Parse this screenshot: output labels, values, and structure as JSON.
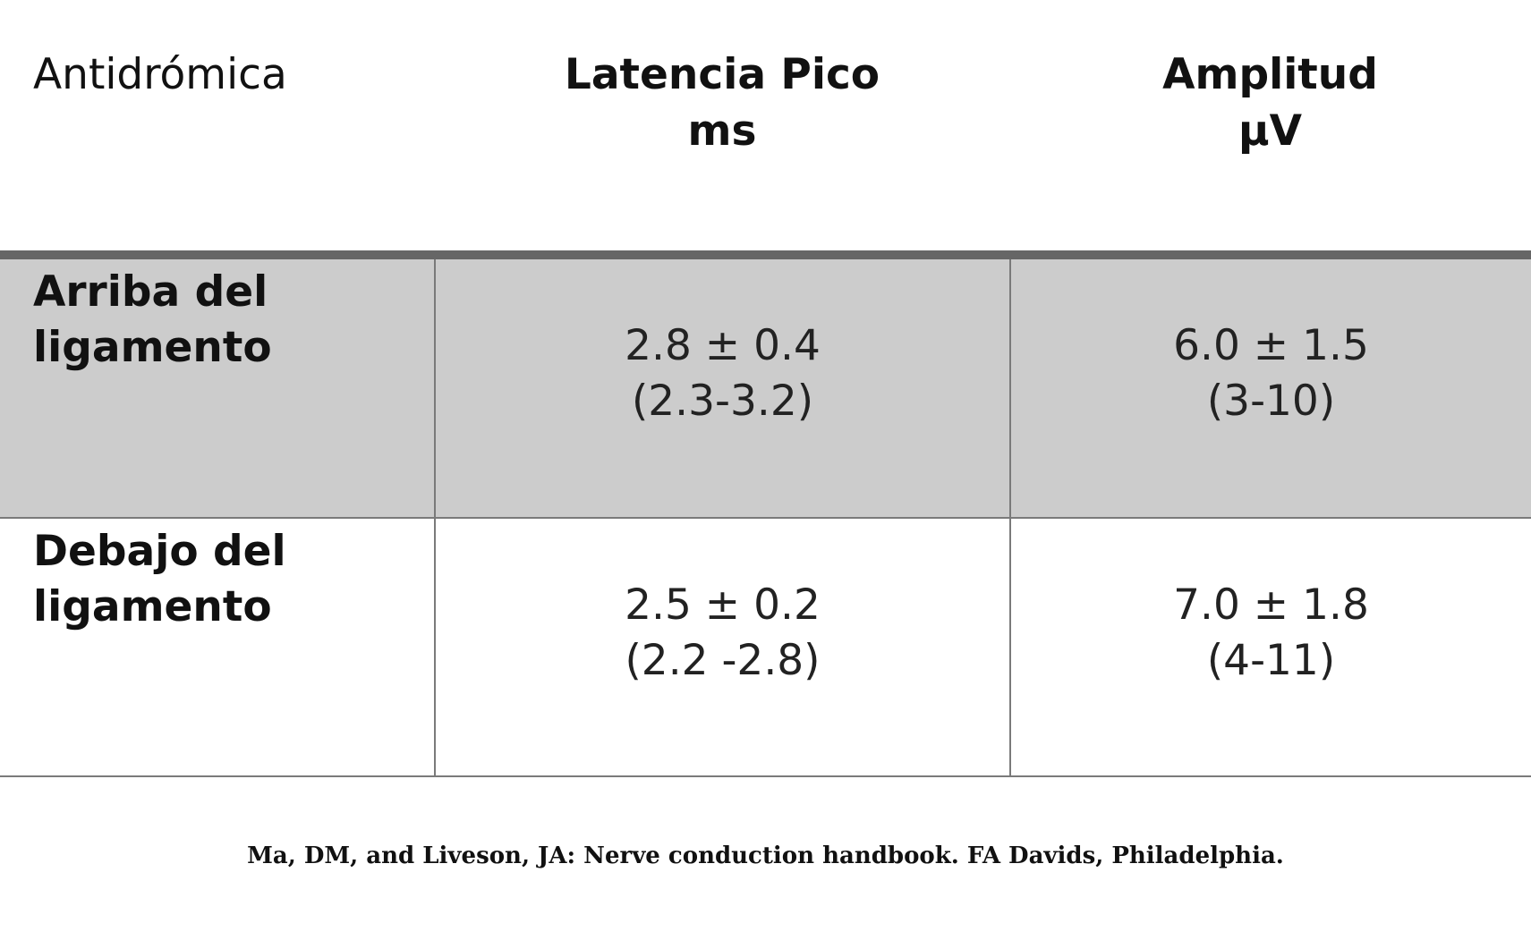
{
  "table": {
    "header": {
      "corner_label": "Antidrómica",
      "latency_title": "Latencia Pico",
      "latency_unit": "ms",
      "amplitude_title": "Amplitud",
      "amplitude_unit": "µV"
    },
    "rows": [
      {
        "label_line1": "Arriba del",
        "label_line2": "ligamento",
        "latency_mean": "2.8 ± 0.4",
        "latency_range": "(2.3-3.2)",
        "amplitude_mean": "6.0 ± 1.5",
        "amplitude_range": "(3-10)",
        "background": "#cccccc"
      },
      {
        "label_line1": "Debajo del",
        "label_line2": "ligamento",
        "latency_mean": "2.5 ± 0.2",
        "latency_range": "(2.2 -2.8)",
        "amplitude_mean": "7.0 ± 1.8",
        "amplitude_range": "(4-11)",
        "background": "#ffffff"
      }
    ]
  },
  "citation": "Ma, DM, and Liveson, JA: Nerve conduction handbook. FA Davids, Philadelphia.",
  "colors": {
    "header_rule": "#666666",
    "grid_line": "#7a7a7a",
    "shaded_row": "#cccccc"
  }
}
